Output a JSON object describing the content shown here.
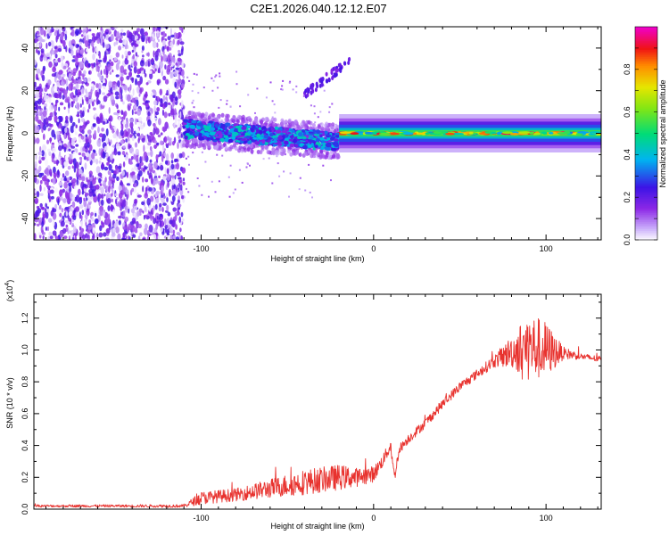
{
  "title": "C2E1.2026.040.12.12.E07",
  "colors": {
    "snr_line": "#e8322e",
    "axis": "#000000"
  },
  "chart_data": [
    {
      "type": "heatmap",
      "title": "C2E1.2026.040.12.12.E07",
      "xlabel": "Height of straight line (km)",
      "ylabel": "Frequency (Hz)",
      "xlim": [
        -197,
        132
      ],
      "ylim": [
        -50,
        50
      ],
      "x_ticks": [
        -100,
        0,
        100
      ],
      "x_tick_labels": [
        "-100",
        "0",
        "100"
      ],
      "y_ticks": [
        -40,
        -20,
        0,
        20,
        40
      ],
      "y_tick_labels": [
        "-40",
        "-20",
        "0",
        "20",
        "40"
      ],
      "colorbar": {
        "label": "Normalized spectral amplitude",
        "range": [
          0,
          1
        ],
        "ticks": [
          0.0,
          0.2,
          0.4,
          0.6,
          0.8
        ],
        "tick_labels": [
          "0.0",
          "0.2",
          "0.4",
          "0.6",
          "0.8"
        ],
        "colormap": "rainbow (white-violet-blue-cyan-green-yellow-orange-red-magenta)"
      },
      "regions": [
        {
          "name": "noise",
          "x_range": [
            -197,
            -110
          ],
          "freq_range": [
            -50,
            50
          ],
          "amplitude_range": [
            0.0,
            0.25
          ]
        },
        {
          "name": "ramp",
          "x_range": [
            -110,
            -20
          ],
          "freq_center": [
            2,
            -4
          ],
          "freq_halfwidth": 4,
          "amplitude_range": [
            0.15,
            0.45
          ]
        },
        {
          "name": "streak",
          "x_range": [
            -40,
            -14
          ],
          "freq_range": [
            18,
            34
          ],
          "amplitude_range": [
            0.15,
            0.25
          ]
        },
        {
          "name": "carrier",
          "x_range": [
            -20,
            132
          ],
          "freq_center": 0,
          "freq_halfwidth": 2,
          "amplitude_range": [
            0.3,
            0.95
          ]
        }
      ]
    },
    {
      "type": "line",
      "xlabel": "Height of straight line (km)",
      "ylabel": "SNR (10 * v/v)",
      "y_scale_label": "(x10",
      "y_scale_exponent": "4",
      "xlim": [
        -197,
        132
      ],
      "ylim": [
        0,
        1.35
      ],
      "x_ticks": [
        -100,
        0,
        100
      ],
      "x_tick_labels": [
        "-100",
        "0",
        "100"
      ],
      "y_ticks": [
        0.0,
        0.2,
        0.4,
        0.6,
        0.8,
        1.0,
        1.2
      ],
      "y_tick_labels": [
        "0.0",
        "0.2",
        "0.4",
        "0.6",
        "0.8",
        "1.0",
        "1.2"
      ],
      "series": [
        {
          "name": "SNR",
          "x": [
            -197,
            -150,
            -110,
            -100,
            -80,
            -60,
            -40,
            -20,
            -10,
            0,
            5,
            10,
            12,
            15,
            20,
            30,
            40,
            50,
            60,
            70,
            80,
            90,
            100,
            110,
            120,
            132
          ],
          "values": [
            0.02,
            0.02,
            0.02,
            0.07,
            0.09,
            0.13,
            0.17,
            0.2,
            0.2,
            0.22,
            0.3,
            0.4,
            0.2,
            0.38,
            0.44,
            0.54,
            0.66,
            0.77,
            0.85,
            0.93,
            0.99,
            1.02,
            1.0,
            0.98,
            0.96,
            0.94
          ],
          "noise_amplitude": [
            0.008,
            0.008,
            0.01,
            0.04,
            0.04,
            0.06,
            0.08,
            0.08,
            0.06,
            0.05,
            0.04,
            0.04,
            0.04,
            0.03,
            0.03,
            0.03,
            0.03,
            0.03,
            0.03,
            0.04,
            0.1,
            0.22,
            0.18,
            0.04,
            0.02,
            0.02
          ]
        }
      ]
    }
  ]
}
